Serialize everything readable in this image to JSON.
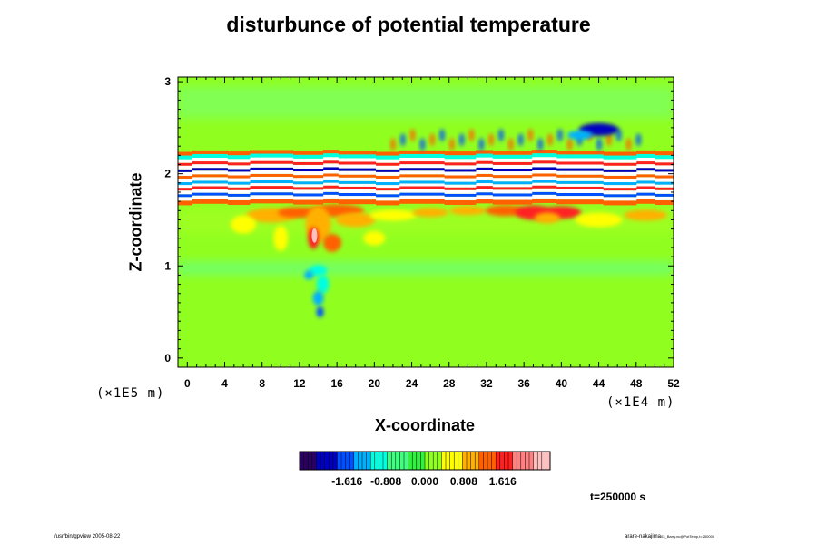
{
  "chart_data": {
    "type": "heatmap",
    "title": "disturbunce of potential temperature",
    "xlabel": "X-coordinate",
    "ylabel": "Z-coordinate",
    "x_scale_label": "(×1E4 m)",
    "y_scale_label": "(×1E5 m)",
    "xlim": [
      -1,
      52
    ],
    "ylim": [
      -0.1,
      3.05
    ],
    "x_ticks": [
      "0",
      "4",
      "8",
      "12",
      "16",
      "20",
      "24",
      "28",
      "32",
      "36",
      "40",
      "44",
      "48",
      "52"
    ],
    "y_ticks": [
      "0",
      "1",
      "2",
      "3"
    ],
    "colorbar": {
      "range": [
        -2.6,
        2.6
      ],
      "tick_labels": [
        "-1.616",
        "-0.808",
        "0.000",
        "0.808",
        "1.616"
      ],
      "tick_values": [
        -1.616,
        -0.808,
        0.0,
        0.808,
        1.616
      ],
      "colors": [
        "#2a0060",
        "#0000c0",
        "#0050ff",
        "#00b0ff",
        "#00ffe0",
        "#40ff80",
        "#30f040",
        "#90ff20",
        "#ffff00",
        "#ffb000",
        "#ff6000",
        "#ff2020",
        "#ff8080",
        "#ffc0c0"
      ]
    },
    "background_value": 0.2,
    "features": [
      {
        "region": "upper band with strong positive/negative stripes and white (saturated) layers",
        "z_range": [
          1.65,
          2.3
        ]
      },
      {
        "region": "warm anomalies (red/orange)",
        "x_range": [
          8,
          20
        ],
        "z_range": [
          1.2,
          1.7
        ]
      },
      {
        "region": "warm anomalies (red)",
        "x_range": [
          36,
          42
        ],
        "z_range": [
          1.5,
          1.7
        ]
      },
      {
        "region": "cold plume (cyan)",
        "x_range": [
          12,
          16
        ],
        "z_range": [
          0.5,
          1.0
        ]
      },
      {
        "region": "cold patch (blue)",
        "x_range": [
          40,
          48
        ],
        "z_range": [
          2.35,
          2.6
        ]
      }
    ]
  },
  "time_label": "t=250000 s",
  "footer": {
    "left": "/usr/bin/gpview 2005-08-22",
    "right_main": "arare-nakajima",
    "right_sub": "03_Barry.nc@PotTemp,t=250000"
  }
}
